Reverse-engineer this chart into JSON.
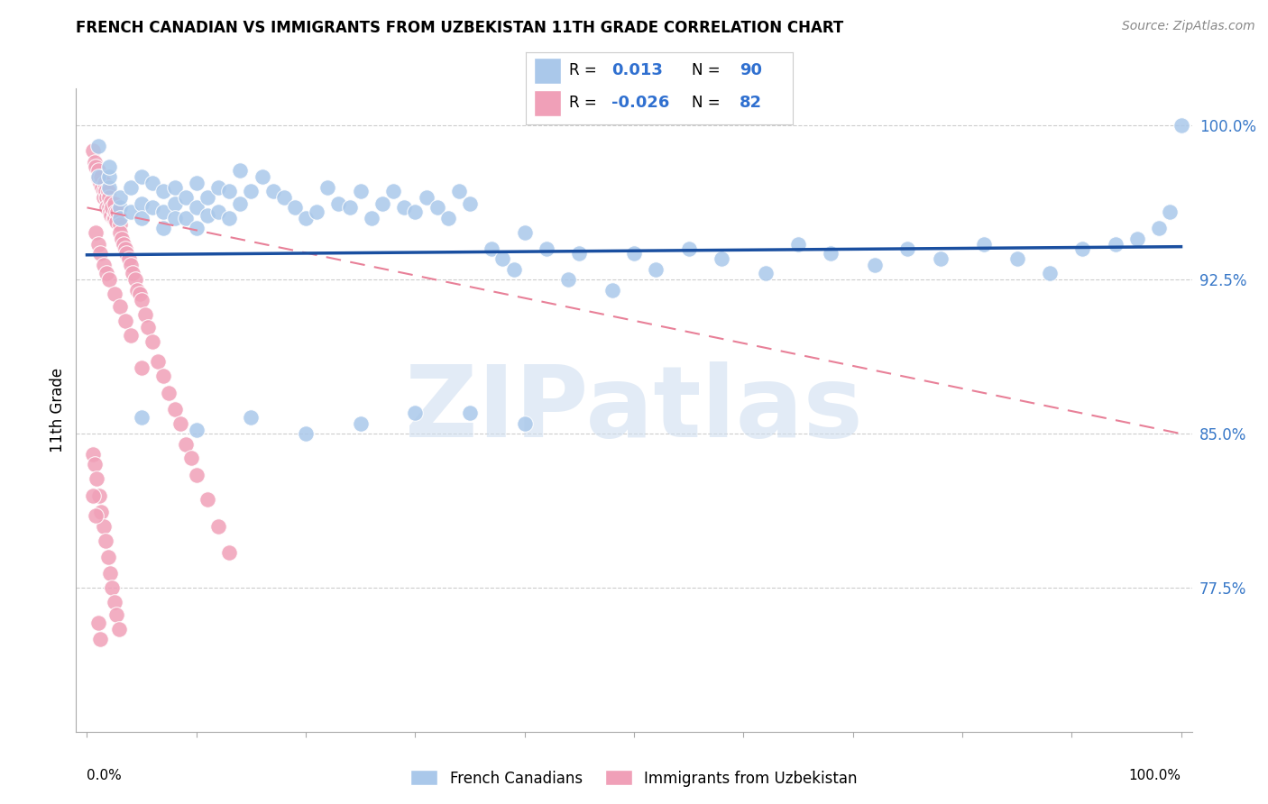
{
  "title": "FRENCH CANADIAN VS IMMIGRANTS FROM UZBEKISTAN 11TH GRADE CORRELATION CHART",
  "source": "Source: ZipAtlas.com",
  "ylabel": "11th Grade",
  "ymin": 0.705,
  "ymax": 1.018,
  "xmin": -0.01,
  "xmax": 1.01,
  "blue_R": 0.013,
  "blue_N": 90,
  "pink_R": -0.026,
  "pink_N": 82,
  "blue_color": "#aac8ea",
  "pink_color": "#f0a0b8",
  "blue_line_color": "#1a4fa0",
  "pink_line_color": "#e88098",
  "watermark": "ZIPatlas",
  "blue_line_y0": 0.937,
  "blue_line_y1": 0.941,
  "pink_line_y0": 0.96,
  "pink_line_y1": 0.85,
  "blue_scatter_x": [
    0.01,
    0.01,
    0.02,
    0.02,
    0.02,
    0.03,
    0.03,
    0.03,
    0.04,
    0.04,
    0.05,
    0.05,
    0.05,
    0.06,
    0.06,
    0.07,
    0.07,
    0.07,
    0.08,
    0.08,
    0.08,
    0.09,
    0.09,
    0.1,
    0.1,
    0.1,
    0.11,
    0.11,
    0.12,
    0.12,
    0.13,
    0.13,
    0.14,
    0.14,
    0.15,
    0.16,
    0.17,
    0.18,
    0.19,
    0.2,
    0.21,
    0.22,
    0.23,
    0.24,
    0.25,
    0.26,
    0.27,
    0.28,
    0.29,
    0.3,
    0.31,
    0.32,
    0.33,
    0.34,
    0.35,
    0.37,
    0.38,
    0.39,
    0.4,
    0.42,
    0.44,
    0.45,
    0.48,
    0.5,
    0.52,
    0.55,
    0.58,
    0.62,
    0.65,
    0.68,
    0.72,
    0.75,
    0.78,
    0.82,
    0.85,
    0.88,
    0.91,
    0.94,
    0.96,
    0.98,
    0.99,
    1.0,
    0.35,
    0.4,
    0.3,
    0.25,
    0.2,
    0.15,
    0.1,
    0.05
  ],
  "blue_scatter_y": [
    0.99,
    0.975,
    0.97,
    0.975,
    0.98,
    0.96,
    0.955,
    0.965,
    0.97,
    0.958,
    0.975,
    0.962,
    0.955,
    0.972,
    0.96,
    0.968,
    0.958,
    0.95,
    0.97,
    0.962,
    0.955,
    0.965,
    0.955,
    0.972,
    0.96,
    0.95,
    0.965,
    0.956,
    0.97,
    0.958,
    0.968,
    0.955,
    0.978,
    0.962,
    0.968,
    0.975,
    0.968,
    0.965,
    0.96,
    0.955,
    0.958,
    0.97,
    0.962,
    0.96,
    0.968,
    0.955,
    0.962,
    0.968,
    0.96,
    0.958,
    0.965,
    0.96,
    0.955,
    0.968,
    0.962,
    0.94,
    0.935,
    0.93,
    0.948,
    0.94,
    0.925,
    0.938,
    0.92,
    0.938,
    0.93,
    0.94,
    0.935,
    0.928,
    0.942,
    0.938,
    0.932,
    0.94,
    0.935,
    0.942,
    0.935,
    0.928,
    0.94,
    0.942,
    0.945,
    0.95,
    0.958,
    1.0,
    0.86,
    0.855,
    0.86,
    0.855,
    0.85,
    0.858,
    0.852,
    0.858
  ],
  "pink_scatter_x": [
    0.005,
    0.007,
    0.008,
    0.01,
    0.01,
    0.012,
    0.013,
    0.014,
    0.015,
    0.015,
    0.016,
    0.017,
    0.018,
    0.018,
    0.019,
    0.02,
    0.02,
    0.021,
    0.022,
    0.022,
    0.023,
    0.024,
    0.025,
    0.025,
    0.026,
    0.027,
    0.028,
    0.03,
    0.03,
    0.032,
    0.033,
    0.035,
    0.036,
    0.038,
    0.04,
    0.042,
    0.044,
    0.046,
    0.048,
    0.05,
    0.053,
    0.056,
    0.06,
    0.065,
    0.07,
    0.075,
    0.08,
    0.085,
    0.09,
    0.095,
    0.1,
    0.11,
    0.12,
    0.13,
    0.008,
    0.01,
    0.012,
    0.015,
    0.018,
    0.02,
    0.025,
    0.03,
    0.035,
    0.04,
    0.05,
    0.005,
    0.007,
    0.009,
    0.011,
    0.013,
    0.015,
    0.017,
    0.019,
    0.021,
    0.023,
    0.025,
    0.027,
    0.029,
    0.005,
    0.008,
    0.01,
    0.012
  ],
  "pink_scatter_y": [
    0.988,
    0.982,
    0.98,
    0.978,
    0.974,
    0.972,
    0.975,
    0.97,
    0.968,
    0.965,
    0.972,
    0.968,
    0.965,
    0.96,
    0.968,
    0.965,
    0.96,
    0.958,
    0.963,
    0.956,
    0.96,
    0.955,
    0.962,
    0.955,
    0.958,
    0.953,
    0.958,
    0.952,
    0.948,
    0.945,
    0.942,
    0.94,
    0.938,
    0.935,
    0.932,
    0.928,
    0.925,
    0.92,
    0.918,
    0.915,
    0.908,
    0.902,
    0.895,
    0.885,
    0.878,
    0.87,
    0.862,
    0.855,
    0.845,
    0.838,
    0.83,
    0.818,
    0.805,
    0.792,
    0.948,
    0.942,
    0.938,
    0.932,
    0.928,
    0.925,
    0.918,
    0.912,
    0.905,
    0.898,
    0.882,
    0.84,
    0.835,
    0.828,
    0.82,
    0.812,
    0.805,
    0.798,
    0.79,
    0.782,
    0.775,
    0.768,
    0.762,
    0.755,
    0.82,
    0.81,
    0.758,
    0.75
  ]
}
